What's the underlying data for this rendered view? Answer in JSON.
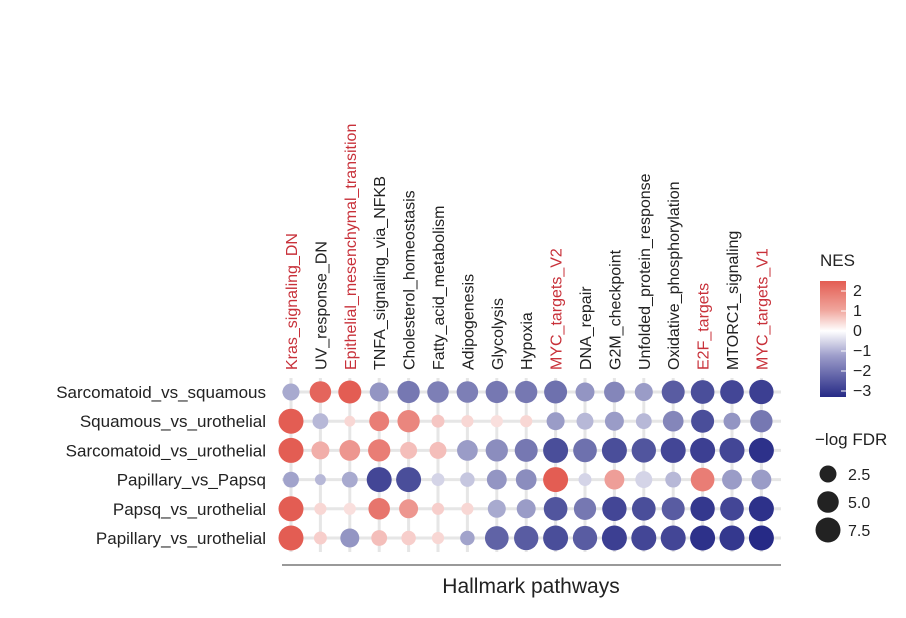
{
  "chart_data": {
    "type": "dot-heatmap",
    "xlabel": "Hallmark pathways",
    "highlight_color": "#c8313a",
    "categories": [
      {
        "label": "Kras_signaling_DN",
        "highlight": true
      },
      {
        "label": "UV_response_DN",
        "highlight": false
      },
      {
        "label": "Epithelial_mesenchymal_transition",
        "highlight": true
      },
      {
        "label": "TNFA_signaling_via_NFKB",
        "highlight": false
      },
      {
        "label": "Cholesterol_homeostasis",
        "highlight": false
      },
      {
        "label": "Fatty_acid_metabolism",
        "highlight": false
      },
      {
        "label": "Adipogenesis",
        "highlight": false
      },
      {
        "label": "Glycolysis",
        "highlight": false
      },
      {
        "label": "Hypoxia",
        "highlight": false
      },
      {
        "label": "MYC_targets_V2",
        "highlight": true
      },
      {
        "label": "DNA_repair",
        "highlight": false
      },
      {
        "label": "G2M_checkpoint",
        "highlight": false
      },
      {
        "label": "Unfolded_protein_response",
        "highlight": false
      },
      {
        "label": "Oxidative_phosphorylation",
        "highlight": false
      },
      {
        "label": "E2F_targets",
        "highlight": true
      },
      {
        "label": "MTORC1_signaling",
        "highlight": false
      },
      {
        "label": "MYC_targets_V1",
        "highlight": true
      }
    ],
    "rows": [
      {
        "label": "Sarcomatoid_vs_squamous",
        "nes": [
          -1.2,
          1.9,
          2.1,
          -1.5,
          -1.9,
          -1.8,
          -1.8,
          -1.9,
          -1.9,
          -2.0,
          -1.5,
          -1.7,
          -1.4,
          -2.3,
          -2.5,
          -2.6,
          -2.7
        ],
        "logfdr": [
          2.5,
          5.0,
          6.0,
          3.5,
          5.5,
          5.0,
          5.0,
          5.5,
          5.5,
          6.0,
          3.5,
          4.5,
          3.0,
          6.0,
          6.5,
          6.5,
          7.0
        ]
      },
      {
        "label": "Squamous_vs_urothelial",
        "nes": [
          2.0,
          -1.0,
          0.5,
          1.6,
          1.5,
          0.7,
          0.5,
          0.4,
          0.5,
          -1.4,
          -1.0,
          -1.4,
          -1.0,
          -1.7,
          -2.5,
          -1.5,
          -1.9
        ],
        "logfdr": [
          7.5,
          2.0,
          0.5,
          4.0,
          5.5,
          1.0,
          0.8,
          0.8,
          0.8,
          3.0,
          2.5,
          3.5,
          2.0,
          4.5,
          6.0,
          2.5,
          5.5
        ]
      },
      {
        "label": "Sarcomatoid_vs_urothelial",
        "nes": [
          2.0,
          1.0,
          1.3,
          1.6,
          0.8,
          0.8,
          -1.4,
          -1.6,
          -1.9,
          -2.5,
          -2.0,
          -2.5,
          -2.4,
          -2.6,
          -2.7,
          -2.6,
          -2.9
        ],
        "logfdr": [
          7.5,
          3.0,
          4.5,
          5.5,
          2.5,
          2.5,
          4.5,
          5.5,
          6.0,
          7.5,
          6.5,
          7.5,
          7.0,
          7.5,
          7.5,
          7.5,
          7.5
        ]
      },
      {
        "label": "Papillary_vs_Papsq",
        "nes": [
          -1.3,
          -1.0,
          -1.2,
          -2.6,
          -2.5,
          -0.6,
          -0.8,
          -1.5,
          -1.6,
          2.0,
          -0.6,
          1.2,
          -0.6,
          -1.0,
          1.6,
          -1.4,
          -1.4
        ],
        "logfdr": [
          2.0,
          0.5,
          2.0,
          7.5,
          7.5,
          1.0,
          1.5,
          4.0,
          4.5,
          7.5,
          1.0,
          4.0,
          2.5,
          2.0,
          6.5,
          4.0,
          4.0
        ]
      },
      {
        "label": "Papsq_vs_urothelial",
        "nes": [
          2.0,
          0.5,
          0.4,
          1.7,
          1.3,
          0.6,
          0.5,
          -1.2,
          -1.4,
          -2.4,
          -1.9,
          -2.6,
          -2.5,
          -2.3,
          -2.8,
          -2.6,
          -2.9
        ],
        "logfdr": [
          7.5,
          0.8,
          0.8,
          5.0,
          3.5,
          0.8,
          0.8,
          3.0,
          3.5,
          6.5,
          5.5,
          7.0,
          6.5,
          6.0,
          7.0,
          6.5,
          7.5
        ]
      },
      {
        "label": "Papillary_vs_urothelial",
        "nes": [
          2.0,
          0.6,
          -1.5,
          0.8,
          0.6,
          0.5,
          -1.3,
          -2.2,
          -2.3,
          -2.5,
          -2.3,
          -2.7,
          -2.6,
          -2.6,
          -2.9,
          -2.8,
          -3.1
        ],
        "logfdr": [
          7.5,
          1.0,
          3.5,
          2.0,
          1.5,
          0.8,
          1.5,
          6.5,
          7.0,
          7.5,
          7.0,
          7.5,
          7.5,
          7.5,
          7.5,
          7.5,
          7.5
        ]
      }
    ],
    "nes_legend": {
      "title": "NES",
      "ticks": [
        "2",
        "1",
        "0",
        "−1",
        "−2",
        "−3"
      ],
      "range": [
        -3.3,
        2.5
      ],
      "colors": {
        "high": "#e35d53",
        "mid": "#ffffff",
        "low": "#262a86"
      }
    },
    "size_legend": {
      "title": "−log FDR",
      "ticks": [
        "2.5",
        "5.0",
        "7.5"
      ],
      "values": [
        2.5,
        5.0,
        7.5
      ]
    }
  }
}
